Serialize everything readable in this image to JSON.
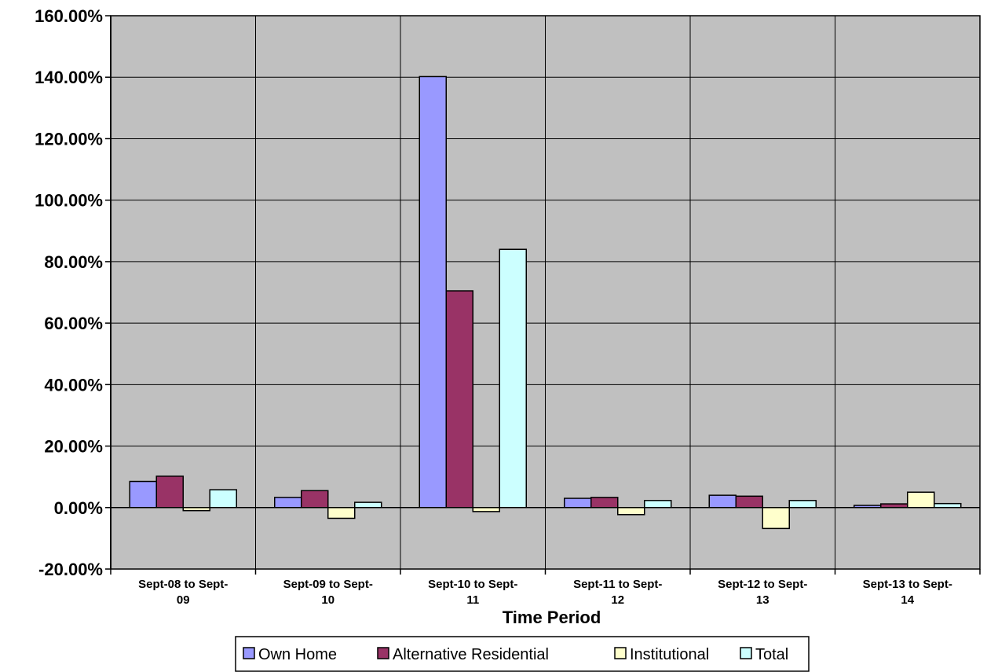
{
  "chart_data": {
    "type": "bar",
    "xlabel": "Time Period",
    "ylabel": "",
    "ylim": [
      -20,
      160
    ],
    "y_format": "percent_2dp",
    "y_ticks": [
      "160.00%",
      "140.00%",
      "120.00%",
      "100.00%",
      "80.00%",
      "60.00%",
      "40.00%",
      "20.00%",
      "0.00%",
      "-20.00%"
    ],
    "y_tick_values": [
      160,
      140,
      120,
      100,
      80,
      60,
      40,
      20,
      0,
      -20
    ],
    "categories": [
      [
        "Sept-08 to Sept-",
        "09"
      ],
      [
        "Sept-09 to Sept-",
        "10"
      ],
      [
        "Sept-10 to Sept-",
        "11"
      ],
      [
        "Sept-11 to Sept-",
        "12"
      ],
      [
        "Sept-12 to Sept-",
        "13"
      ],
      [
        "Sept-13 to Sept-",
        "14"
      ]
    ],
    "series": [
      {
        "name": "Own Home",
        "color": "#9999ff",
        "values": [
          8.5,
          3.3,
          140.2,
          3.0,
          4.0,
          0.7
        ]
      },
      {
        "name": "Alternative Residential",
        "color": "#993366",
        "values": [
          10.2,
          5.5,
          70.5,
          3.3,
          3.7,
          1.2
        ]
      },
      {
        "name": "Institutional",
        "color": "#ffffcc",
        "values": [
          -1.0,
          -3.5,
          -1.3,
          -2.3,
          -6.8,
          5.0
        ]
      },
      {
        "name": "Total",
        "color": "#ccffff",
        "values": [
          5.8,
          1.7,
          84.0,
          2.3,
          2.3,
          1.3
        ]
      }
    ],
    "grid": true,
    "plot_background": "#c0c0c0",
    "legend_position": "bottom"
  }
}
